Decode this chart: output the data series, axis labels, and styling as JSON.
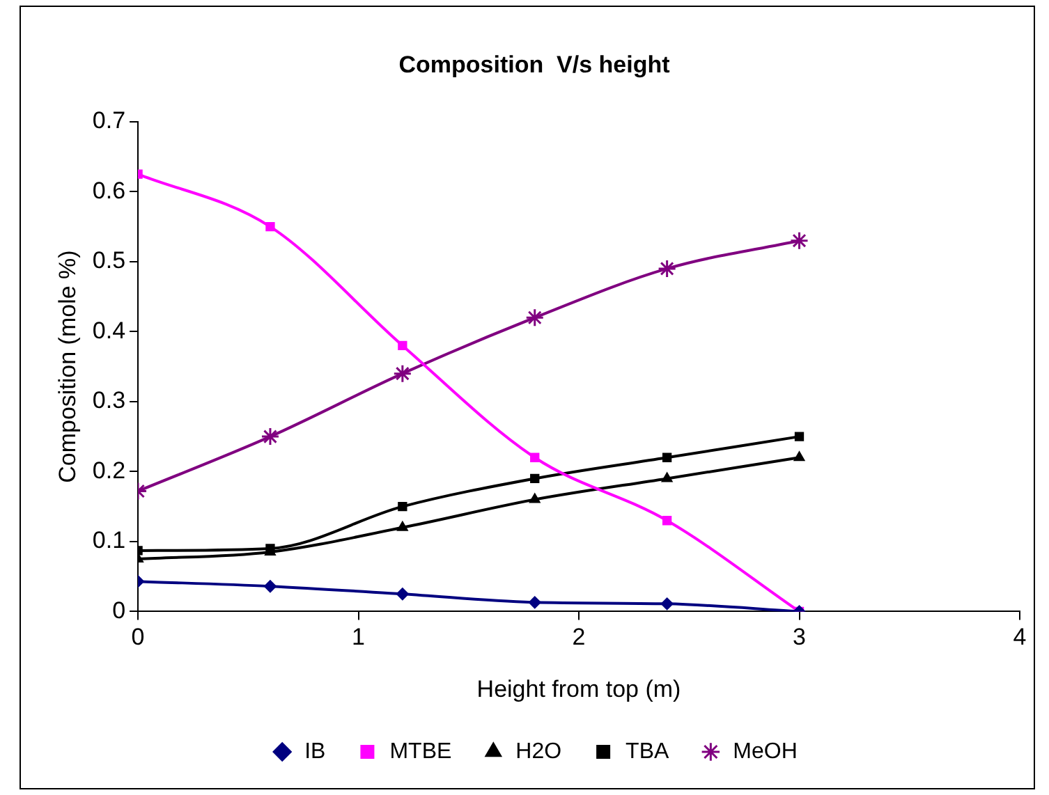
{
  "chart_data": {
    "type": "line",
    "title": "Composition  V/s height",
    "xlabel": "Height from top (m)",
    "ylabel": "Composition (mole %)",
    "x": [
      0,
      0.6,
      1.2,
      1.8,
      2.4,
      3
    ],
    "series": [
      {
        "name": "IB",
        "color": "#000080",
        "marker": "diamond",
        "values": [
          0.043,
          0.036,
          0.025,
          0.013,
          0.011,
          0
        ]
      },
      {
        "name": "MTBE",
        "color": "#ff00ff",
        "marker": "square",
        "values": [
          0.625,
          0.55,
          0.38,
          0.22,
          0.13,
          0
        ]
      },
      {
        "name": "H2O",
        "color": "#000000",
        "marker": "triangle",
        "values": [
          0.075,
          0.085,
          0.12,
          0.16,
          0.19,
          0.22
        ]
      },
      {
        "name": "TBA",
        "color": "#000000",
        "marker": "square",
        "values": [
          0.087,
          0.09,
          0.15,
          0.19,
          0.22,
          0.25
        ]
      },
      {
        "name": "MeOH",
        "color": "#800080",
        "marker": "cross",
        "values": [
          0.172,
          0.25,
          0.34,
          0.42,
          0.49,
          0.53
        ]
      }
    ],
    "xlim": [
      0,
      4
    ],
    "xticks": [
      0,
      1,
      2,
      3,
      4
    ],
    "ylim": [
      0,
      0.7
    ],
    "yticks": [
      0,
      0.1,
      0.2,
      0.3,
      0.4,
      0.5,
      0.6,
      0.7
    ],
    "grid": false,
    "legend": "bottom",
    "line_style": "solid"
  }
}
